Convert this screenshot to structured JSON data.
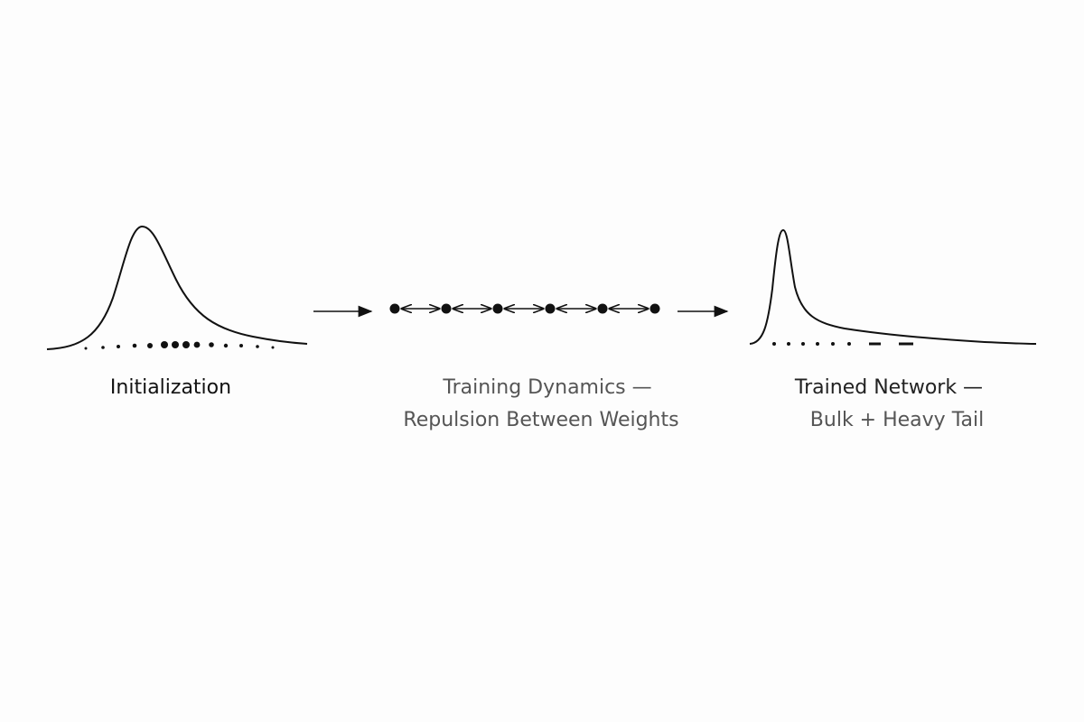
{
  "panels": [
    {
      "lines": [
        "Initialization"
      ]
    },
    {
      "lines": [
        "Training Dynamics —",
        "Repulsion Between Weights"
      ]
    },
    {
      "lines": [
        "Trained Network —",
        "Bulk + Heavy Tail"
      ]
    }
  ]
}
